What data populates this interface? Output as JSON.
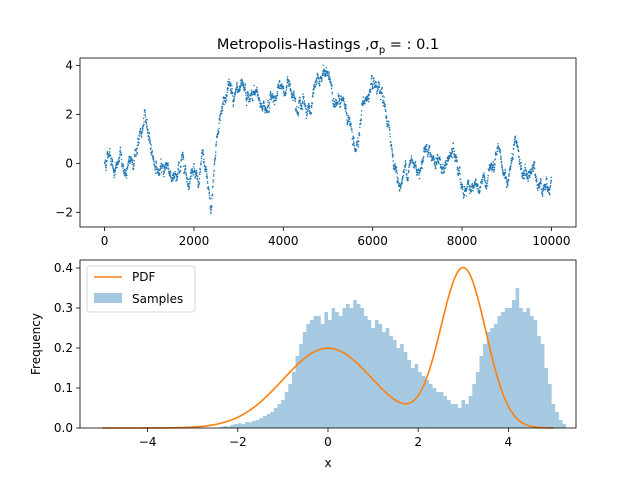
{
  "chart_data": [
    {
      "type": "scatter",
      "title": "Metropolis-Hastings ,σ",
      "title_subscript": "p",
      "title_suffix": " = : 0.1",
      "xlabel": "",
      "ylabel": "",
      "xlim": [
        -550,
        10550
      ],
      "ylim": [
        -2.6,
        4.3
      ],
      "xticks": [
        0,
        2000,
        4000,
        6000,
        8000,
        10000
      ],
      "yticks": [
        -2,
        0,
        2,
        4
      ],
      "color": "#1f77b4",
      "n_samples": 10000,
      "trace_anchors": [
        [
          0,
          0
        ],
        [
          120,
          0.6
        ],
        [
          250,
          -0.3
        ],
        [
          350,
          0.2
        ],
        [
          500,
          -0.5
        ],
        [
          650,
          0.3
        ],
        [
          800,
          1.1
        ],
        [
          900,
          1.6
        ],
        [
          1000,
          1.2
        ],
        [
          1100,
          0.2
        ],
        [
          1250,
          -0.5
        ],
        [
          1400,
          0.0
        ],
        [
          1500,
          -0.4
        ],
        [
          1600,
          -0.8
        ],
        [
          1750,
          0.3
        ],
        [
          1900,
          -0.6
        ],
        [
          2000,
          0.2
        ],
        [
          2100,
          -0.8
        ],
        [
          2200,
          0.2
        ],
        [
          2300,
          -1.0
        ],
        [
          2380,
          -2.2
        ],
        [
          2450,
          -0.2
        ],
        [
          2550,
          1.6
        ],
        [
          2650,
          2.6
        ],
        [
          2800,
          3.2
        ],
        [
          3000,
          2.8
        ],
        [
          3200,
          2.4
        ],
        [
          3400,
          2.8
        ],
        [
          3600,
          2.3
        ],
        [
          3800,
          2.8
        ],
        [
          4000,
          3.0
        ],
        [
          4200,
          3.2
        ],
        [
          4400,
          2.5
        ],
        [
          4600,
          2.3
        ],
        [
          4800,
          3.4
        ],
        [
          5000,
          3.6
        ],
        [
          5200,
          2.5
        ],
        [
          5400,
          2.2
        ],
        [
          5500,
          1.6
        ],
        [
          5600,
          0.3
        ],
        [
          5700,
          1.5
        ],
        [
          5800,
          2.6
        ],
        [
          6000,
          2.8
        ],
        [
          6200,
          2.5
        ],
        [
          6300,
          2.0
        ],
        [
          6400,
          0.8
        ],
        [
          6500,
          0.0
        ],
        [
          6600,
          -1.0
        ],
        [
          6800,
          0.1
        ],
        [
          7000,
          -0.3
        ],
        [
          7200,
          0.9
        ],
        [
          7400,
          0.2
        ],
        [
          7600,
          -0.3
        ],
        [
          7800,
          0.4
        ],
        [
          8000,
          -1.0
        ],
        [
          8200,
          -0.8
        ],
        [
          8400,
          -1.3
        ],
        [
          8600,
          -0.4
        ],
        [
          8800,
          0.0
        ],
        [
          9000,
          -0.8
        ],
        [
          9200,
          0.6
        ],
        [
          9400,
          -0.6
        ],
        [
          9600,
          -0.3
        ],
        [
          9800,
          -0.9
        ],
        [
          10000,
          -0.6
        ]
      ]
    },
    {
      "type": "bar",
      "xlabel": "x",
      "ylabel": "Frequency",
      "xlim": [
        -5.5,
        5.5
      ],
      "ylim": [
        0,
        0.42
      ],
      "xticks": [
        -4,
        -2,
        0,
        2,
        4
      ],
      "yticks": [
        0.0,
        0.1,
        0.2,
        0.3,
        0.4
      ],
      "ytick_labels": [
        "0.0",
        "0.1",
        "0.2",
        "0.3",
        "0.4"
      ],
      "legend": {
        "position": "top-left",
        "entries": [
          "PDF",
          "Samples"
        ]
      },
      "samples_series": {
        "name": "Samples",
        "color": "#1f77b4",
        "opacity": 0.4,
        "bin_width": 0.08,
        "bin_start": -2.4,
        "values": [
          0.003,
          0.005,
          0.004,
          0.008,
          0.01,
          0.012,
          0.01,
          0.015,
          0.014,
          0.018,
          0.02,
          0.025,
          0.03,
          0.035,
          0.04,
          0.05,
          0.06,
          0.07,
          0.09,
          0.11,
          0.14,
          0.18,
          0.21,
          0.24,
          0.26,
          0.27,
          0.28,
          0.28,
          0.26,
          0.29,
          0.27,
          0.3,
          0.29,
          0.28,
          0.3,
          0.31,
          0.3,
          0.32,
          0.31,
          0.3,
          0.28,
          0.27,
          0.25,
          0.27,
          0.26,
          0.24,
          0.25,
          0.23,
          0.22,
          0.2,
          0.21,
          0.19,
          0.17,
          0.15,
          0.16,
          0.14,
          0.13,
          0.12,
          0.11,
          0.1,
          0.09,
          0.09,
          0.08,
          0.07,
          0.06,
          0.06,
          0.05,
          0.07,
          0.06,
          0.08,
          0.11,
          0.14,
          0.18,
          0.21,
          0.24,
          0.25,
          0.26,
          0.28,
          0.29,
          0.3,
          0.3,
          0.32,
          0.35,
          0.3,
          0.29,
          0.3,
          0.28,
          0.27,
          0.23,
          0.21,
          0.15,
          0.11,
          0.06,
          0.04,
          0.02,
          0.01
        ]
      },
      "pdf_series": {
        "name": "PDF",
        "color": "#ff7f0e",
        "components": [
          {
            "weight": 0.5,
            "mean": 0,
            "sd": 1
          },
          {
            "weight": 0.5,
            "mean": 3,
            "sd": 0.5
          }
        ],
        "x_range": [
          -5,
          5
        ]
      }
    }
  ]
}
